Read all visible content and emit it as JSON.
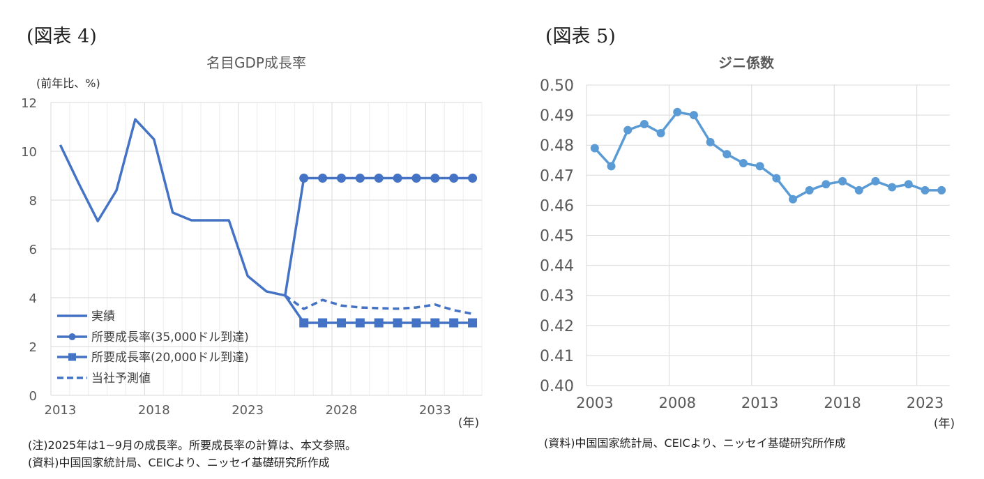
{
  "figure4": {
    "label": "(図表 4)",
    "unit_label": "(前年比、%)",
    "year_unit": "(年)",
    "notes": [
      "(注)2025年は1~9月の成長率。所要成長率の計算は、本文参照。",
      "(資料)中国国家統計局、CEICより、ニッセイ基礎研究所作成"
    ],
    "line_color": "#4472C4"
  },
  "figure5": {
    "label": "(図表 5)",
    "year_unit": "(年)",
    "notes": [
      "(資料)中国国家統計局、CEICより、ニッセイ基礎研究所作成"
    ],
    "line_color": "#5B9BD5"
  },
  "chart_data": [
    {
      "type": "line",
      "title": "名目GDP成長率",
      "xlabel": "(年)",
      "ylabel": "(前年比、%)",
      "x": [
        2013,
        2014,
        2015,
        2016,
        2017,
        2018,
        2019,
        2020,
        2021,
        2022,
        2023,
        2024,
        2025,
        2026,
        2027,
        2028,
        2029,
        2030,
        2031,
        2032,
        2033,
        2034,
        2035
      ],
      "xticks": [
        "2013",
        "2018",
        "2023",
        "2028",
        "2033"
      ],
      "yticks": [
        "0",
        "2",
        "4",
        "6",
        "8",
        "10",
        "12"
      ],
      "ylim": [
        0,
        12
      ],
      "grid": true,
      "legend_position": "lower-left inside",
      "series": [
        {
          "name": "実績",
          "style": "solid",
          "marker": "none",
          "values": [
            10.26,
            8.66,
            7.14,
            8.4,
            11.31,
            10.49,
            7.49,
            7.17,
            7.17,
            7.17,
            4.89,
            4.26,
            4.09,
            null,
            null,
            null,
            null,
            null,
            null,
            null,
            null,
            null,
            null
          ]
        },
        {
          "name": "所要成長率(35,000ドル到達)",
          "style": "solid",
          "marker": "circle",
          "values": [
            null,
            null,
            null,
            null,
            null,
            null,
            null,
            null,
            null,
            null,
            null,
            null,
            4.09,
            8.9,
            8.9,
            8.9,
            8.9,
            8.9,
            8.9,
            8.9,
            8.9,
            8.9,
            8.9
          ]
        },
        {
          "name": "所要成長率(20,000ドル到達)",
          "style": "solid",
          "marker": "square",
          "values": [
            null,
            null,
            null,
            null,
            null,
            null,
            null,
            null,
            null,
            null,
            null,
            null,
            4.09,
            2.97,
            2.97,
            2.97,
            2.97,
            2.97,
            2.97,
            2.97,
            2.97,
            2.97,
            2.97
          ]
        },
        {
          "name": "当社予測値",
          "style": "dashed",
          "marker": "none",
          "values": [
            null,
            null,
            null,
            null,
            null,
            null,
            null,
            null,
            null,
            null,
            null,
            null,
            4.09,
            3.54,
            3.91,
            3.68,
            3.6,
            3.57,
            3.55,
            3.6,
            3.72,
            3.49,
            3.34
          ]
        }
      ]
    },
    {
      "type": "line",
      "title": "ジニ係数",
      "xlabel": "(年)",
      "ylabel": "",
      "x": [
        2003,
        2004,
        2005,
        2006,
        2007,
        2008,
        2009,
        2010,
        2011,
        2012,
        2013,
        2014,
        2015,
        2016,
        2017,
        2018,
        2019,
        2020,
        2021,
        2022,
        2023,
        2024
      ],
      "xticks": [
        "2003",
        "2008",
        "2013",
        "2018",
        "2023"
      ],
      "yticks": [
        "0.40",
        "0.41",
        "0.42",
        "0.43",
        "0.44",
        "0.45",
        "0.46",
        "0.47",
        "0.48",
        "0.49",
        "0.50"
      ],
      "ylim": [
        0.4,
        0.5
      ],
      "grid": true,
      "series": [
        {
          "name": "ジニ係数",
          "style": "solid",
          "marker": "circle",
          "values": [
            0.479,
            0.473,
            0.485,
            0.487,
            0.484,
            0.491,
            0.49,
            0.481,
            0.477,
            0.474,
            0.473,
            0.469,
            0.462,
            0.465,
            0.467,
            0.468,
            0.465,
            0.468,
            0.466,
            0.467,
            0.465,
            0.465
          ]
        }
      ]
    }
  ]
}
